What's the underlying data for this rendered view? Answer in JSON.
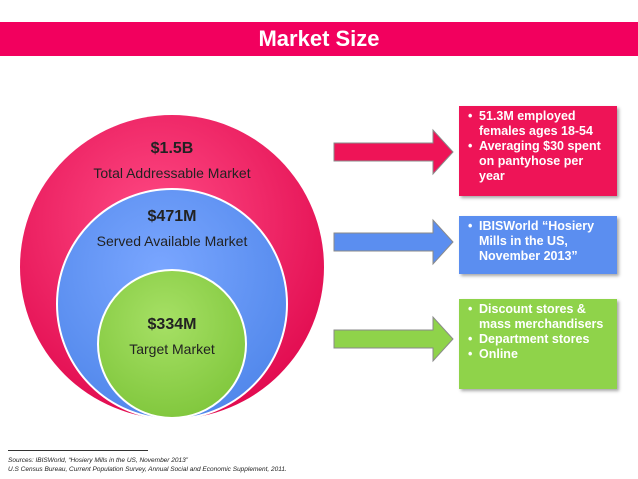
{
  "title": "Market Size",
  "colors": {
    "banner": "#f2005e",
    "pink": "#ee1457",
    "blue": "#5b8ef0",
    "green": "#8fd34a"
  },
  "circles": {
    "tam": {
      "value": "$1.5B",
      "label": "Total Addressable Market"
    },
    "sam": {
      "value": "$471M",
      "label": "Served Available Market"
    },
    "som": {
      "value": "$334M",
      "label": "Target Market"
    }
  },
  "boxes": {
    "pink": [
      "51.3M employed females ages 18-54",
      "Averaging $30 spent on pantyhose per year"
    ],
    "blue": [
      "IBISWorld “Hosiery Mills in the US, November 2013”"
    ],
    "green": [
      "Discount stores & mass merchandisers",
      "Department stores",
      "Online"
    ]
  },
  "sources": {
    "line1": "Sources: IBISWorld, “Hosiery Mills in the US, November 2013”",
    "line2": "U.S Census Bureau, Current Population Survey, Annual Social and Economic Supplement, 2011."
  }
}
